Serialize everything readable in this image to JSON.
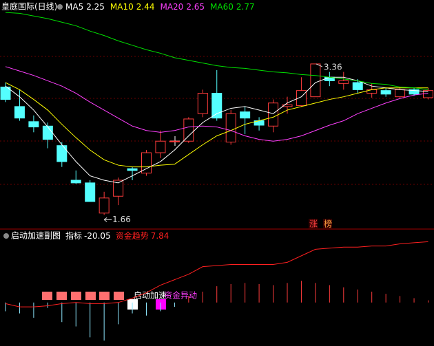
{
  "chart_data": [
    {
      "type": "candlestick",
      "title": "皇庭国际(日线)",
      "ylim": [
        1.5,
        4.08
      ],
      "open": [
        3.1,
        2.88,
        2.71,
        2.66,
        2.44,
        2.05,
        2.02,
        1.68,
        1.87,
        2.18,
        2.13,
        2.36,
        2.49,
        2.49,
        2.8,
        3.03,
        2.48,
        2.82,
        2.72,
        2.66,
        2.88,
        2.89,
        2.99,
        3.21,
        3.14,
        3.15,
        3.03,
        3.06,
        2.99,
        3.07,
        2.98
      ],
      "high": [
        3.15,
        3.07,
        2.78,
        2.7,
        2.48,
        2.16,
        2.05,
        1.92,
        2.08,
        2.2,
        2.39,
        2.61,
        2.5,
        2.76,
        3.07,
        3.29,
        2.84,
        2.88,
        2.76,
        2.96,
        2.99,
        3.21,
        3.36,
        3.27,
        3.27,
        3.19,
        3.14,
        3.09,
        3.1,
        3.09,
        3.09
      ],
      "low": [
        2.93,
        2.72,
        2.59,
        2.41,
        2.2,
        2.01,
        1.81,
        1.66,
        1.77,
        2.05,
        2.1,
        2.3,
        2.48,
        2.47,
        2.76,
        2.72,
        2.45,
        2.57,
        2.61,
        2.59,
        2.8,
        2.88,
        2.99,
        3.11,
        3.07,
        3.03,
        2.98,
        2.99,
        2.98,
        3.0,
        2.96
      ],
      "close": [
        2.96,
        2.75,
        2.65,
        2.51,
        2.26,
        2.02,
        1.81,
        1.85,
        2.05,
        2.16,
        2.36,
        2.49,
        2.49,
        2.74,
        3.03,
        2.75,
        2.8,
        2.75,
        2.67,
        2.92,
        2.9,
        3.06,
        3.36,
        3.17,
        3.17,
        3.07,
        3.07,
        3.02,
        3.07,
        3.02,
        3.06
      ],
      "up_color": "#ff3c3c",
      "down_color": "#54ffff",
      "series": [
        {
          "name": "MA5",
          "color": "#ffffff",
          "value": 2.25,
          "values": [
            3.11,
            2.99,
            2.84,
            2.65,
            2.45,
            2.26,
            2.1,
            2.05,
            2.02,
            2.1,
            2.18,
            2.26,
            2.39,
            2.55,
            2.7,
            2.8,
            2.86,
            2.88,
            2.84,
            2.8,
            2.92,
            2.99,
            3.15,
            3.21,
            3.21,
            3.17,
            3.11,
            3.09,
            3.07,
            3.06,
            3.05
          ]
        },
        {
          "name": "MA10",
          "color": "#ffff00",
          "value": 2.44,
          "values": [
            3.15,
            3.07,
            2.96,
            2.84,
            2.68,
            2.53,
            2.39,
            2.28,
            2.22,
            2.2,
            2.2,
            2.22,
            2.23,
            2.34,
            2.45,
            2.55,
            2.61,
            2.68,
            2.72,
            2.76,
            2.84,
            2.88,
            2.92,
            2.96,
            2.99,
            3.03,
            3.07,
            3.09,
            3.09,
            3.09,
            3.09
          ]
        },
        {
          "name": "MA20",
          "color": "#ff40ff",
          "value": 2.65,
          "values": [
            3.33,
            3.28,
            3.23,
            3.17,
            3.11,
            3.03,
            2.93,
            2.84,
            2.75,
            2.66,
            2.61,
            2.59,
            2.61,
            2.65,
            2.66,
            2.65,
            2.61,
            2.55,
            2.51,
            2.49,
            2.51,
            2.55,
            2.61,
            2.67,
            2.72,
            2.8,
            2.86,
            2.92,
            2.97,
            3.01,
            3.03
          ]
        },
        {
          "name": "MA60",
          "color": "#00e000",
          "value": 2.77,
          "values": [
            3.94,
            3.93,
            3.9,
            3.87,
            3.83,
            3.79,
            3.73,
            3.68,
            3.62,
            3.57,
            3.52,
            3.48,
            3.43,
            3.4,
            3.37,
            3.34,
            3.32,
            3.31,
            3.29,
            3.27,
            3.26,
            3.24,
            3.23,
            3.21,
            3.19,
            3.17,
            3.14,
            3.13,
            3.1,
            3.09,
            3.07
          ]
        }
      ],
      "high_label": "3.36",
      "low_label": "1.66",
      "badges": [
        "涨",
        "榜"
      ]
    },
    {
      "type": "indicator",
      "title": "启动加速副图",
      "ylim": [
        -40,
        60
      ],
      "series": [
        {
          "name": "指标",
          "value": -20.05,
          "up_color": "#ff3c3c",
          "down_color": "#8ee8ff",
          "values": [
            -8,
            -10,
            -14,
            -5,
            -18,
            -22,
            -32,
            -35,
            -20,
            -10,
            -12,
            -8,
            -4,
            6,
            10,
            15,
            17,
            18,
            17,
            16,
            18,
            20,
            18,
            16,
            14,
            12,
            10,
            8,
            6,
            4,
            2
          ]
        },
        {
          "name": "资金趋势",
          "value": 7.84,
          "color": "#ff2020",
          "values": [
            -1,
            -4,
            -4,
            -3,
            -1,
            0,
            -1,
            -1,
            0,
            4,
            9,
            16,
            21,
            26,
            33,
            34,
            35,
            35,
            35,
            35,
            37,
            43,
            49,
            50,
            51,
            51,
            52,
            52,
            54,
            55,
            56
          ]
        }
      ],
      "signals": [
        "启动加速",
        "资金异动"
      ]
    }
  ]
}
